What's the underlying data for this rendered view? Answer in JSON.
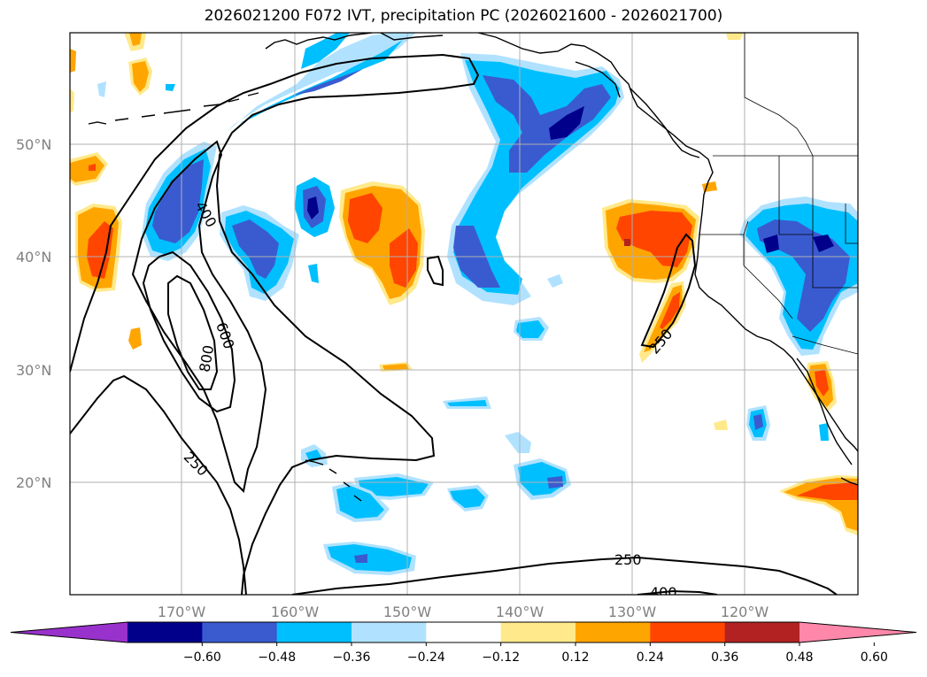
{
  "title": "2026021200 F072 IVT, precipitation PC (2026021600 - 2026021700)",
  "lat_labels": [
    "50°N",
    "40°N",
    "30°N",
    "20°N"
  ],
  "lon_labels": [
    "170°W",
    "160°W",
    "150°W",
    "140°W",
    "130°W",
    "120°W"
  ],
  "contour_labels": [
    "400",
    "600",
    "800",
    "250",
    "250",
    "250",
    "400"
  ],
  "colorbar": {
    "tick_labels": [
      "−0.60",
      "−0.48",
      "−0.36",
      "−0.24",
      "−0.12",
      "0.12",
      "0.24",
      "0.36",
      "0.48",
      "0.60"
    ],
    "colors": [
      "#9932cc",
      "#00008b",
      "#3a5bd0",
      "#00bfff",
      "#b0e2ff",
      "#ffffff",
      "#ffe98a",
      "#ffa500",
      "#ff4500",
      "#b22222",
      "#ff88aa"
    ]
  }
}
